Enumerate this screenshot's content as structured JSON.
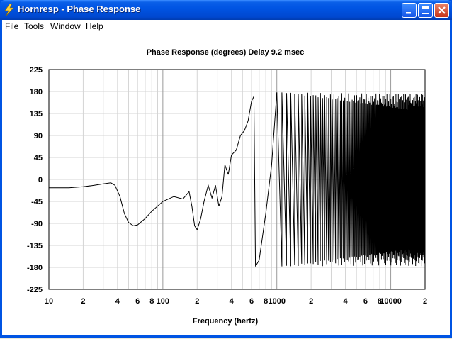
{
  "window": {
    "title": "Hornresp - Phase Response",
    "buttons": {
      "minimize": "minimize-icon",
      "maximize": "maximize-icon",
      "close": "close-icon"
    }
  },
  "menu": [
    "File",
    "Tools",
    "Window",
    "Help"
  ],
  "chart_title": "Phase Response (degrees)   Delay 9.2 msec",
  "chart_data": {
    "type": "line",
    "title": "Phase Response (degrees)   Delay 9.2 msec",
    "xlabel": "Frequency (hertz)",
    "ylabel": "",
    "xscale": "log",
    "xlim": [
      10,
      20000
    ],
    "ylim": [
      -225,
      225
    ],
    "yticks": [
      225,
      180,
      135,
      90,
      45,
      0,
      -45,
      -90,
      -135,
      -180,
      -225
    ],
    "yticklabels": [
      "225",
      "180",
      "135",
      "90",
      "45",
      "0",
      "-45",
      "-90",
      "-135",
      "-180",
      "-225"
    ],
    "xticks": [
      10,
      20,
      40,
      60,
      80,
      100,
      200,
      400,
      600,
      800,
      1000,
      2000,
      4000,
      6000,
      8000,
      10000,
      20000
    ],
    "xticklabels": [
      "10",
      "2",
      "4",
      "6",
      "8",
      "100",
      "2",
      "4",
      "6",
      "8",
      "1000",
      "2",
      "4",
      "6",
      "8",
      "10000",
      "2"
    ],
    "grid": true,
    "series": [
      {
        "x": [
          10,
          15,
          20,
          25,
          30,
          35,
          38,
          42,
          46,
          50,
          55,
          60,
          70,
          80,
          100,
          125,
          150,
          170,
          180,
          190,
          200,
          215,
          230,
          250,
          270,
          290,
          310,
          330,
          350,
          375,
          400,
          440,
          480,
          520,
          560,
          600,
          630,
          650
        ],
        "y": [
          -17,
          -17,
          -15,
          -12,
          -9,
          -7,
          -12,
          -35,
          -70,
          -88,
          -95,
          -93,
          -80,
          -65,
          -45,
          -35,
          -40,
          -25,
          -55,
          -95,
          -103,
          -80,
          -45,
          -12,
          -38,
          -12,
          -55,
          -35,
          30,
          10,
          50,
          60,
          90,
          100,
          120,
          160,
          170,
          -178
        ]
      },
      {
        "x": [
          650,
          700,
          800,
          900,
          1000
        ],
        "y": [
          -178,
          -165,
          -70,
          30,
          178
        ]
      }
    ],
    "notes": "Above ~1 kHz the phase wraps rapidly between -180 and 180 degrees with increasing frequency; the wraps get denser toward 20 kHz."
  }
}
